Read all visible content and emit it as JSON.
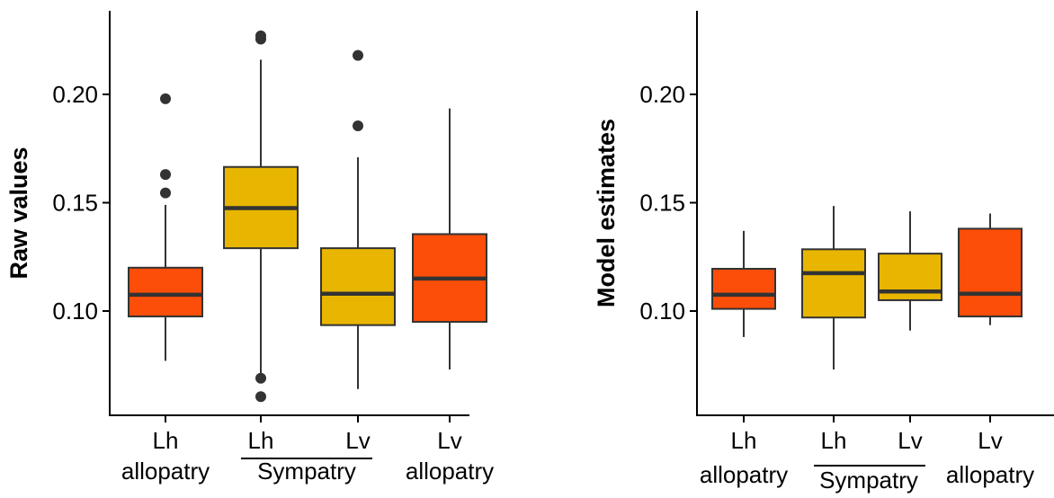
{
  "chart_data": [
    {
      "type": "box",
      "ylabel": "Raw values",
      "ylim": [
        0.05,
        0.24
      ],
      "yticks": [
        "0.10",
        "0.15",
        "0.20"
      ],
      "ytick_values": [
        0.1,
        0.15,
        0.2
      ],
      "categories": [
        {
          "line1": "Lh",
          "line2": "allopatry"
        },
        {
          "line1": "Lh",
          "line2": ""
        },
        {
          "line1": "Lv",
          "line2": ""
        },
        {
          "line1": "Lv",
          "line2": "allopatry"
        }
      ],
      "group_label": {
        "text": "Sympatry",
        "spans": [
          1,
          2
        ]
      },
      "colors": [
        "#fc4e08",
        "#e8b600",
        "#e8b600",
        "#fc4e08"
      ],
      "boxes": [
        {
          "min": 0.077,
          "q1": 0.0975,
          "median": 0.1075,
          "q3": 0.12,
          "max": 0.149,
          "outliers": [
            0.198,
            0.163,
            0.1545
          ]
        },
        {
          "min": 0.071,
          "q1": 0.129,
          "median": 0.1475,
          "q3": 0.1665,
          "max": 0.216,
          "outliers": [
            0.227,
            0.2255,
            0.069,
            0.0605
          ]
        },
        {
          "min": 0.064,
          "q1": 0.0935,
          "median": 0.108,
          "q3": 0.129,
          "max": 0.171,
          "outliers": [
            0.218,
            0.1855
          ]
        },
        {
          "min": 0.073,
          "q1": 0.095,
          "median": 0.115,
          "q3": 0.1355,
          "max": 0.1935,
          "outliers": []
        }
      ]
    },
    {
      "type": "box",
      "ylabel": "Model estimates",
      "ylim": [
        0.05,
        0.24
      ],
      "yticks": [
        "0.10",
        "0.15",
        "0.20"
      ],
      "ytick_values": [
        0.1,
        0.15,
        0.2
      ],
      "categories": [
        {
          "line1": "Lh",
          "line2": "allopatry"
        },
        {
          "line1": "Lh",
          "line2": ""
        },
        {
          "line1": "Lv",
          "line2": ""
        },
        {
          "line1": "Lv",
          "line2": "allopatry"
        }
      ],
      "group_label": {
        "text": "Sympatry",
        "spans": [
          1,
          2
        ]
      },
      "colors": [
        "#fc4e08",
        "#e8b600",
        "#e8b600",
        "#fc4e08"
      ],
      "boxes": [
        {
          "min": 0.088,
          "q1": 0.101,
          "median": 0.1075,
          "q3": 0.1195,
          "max": 0.137,
          "outliers": []
        },
        {
          "min": 0.073,
          "q1": 0.097,
          "median": 0.1175,
          "q3": 0.1285,
          "max": 0.1485,
          "outliers": []
        },
        {
          "min": 0.091,
          "q1": 0.105,
          "median": 0.109,
          "q3": 0.1265,
          "max": 0.146,
          "outliers": []
        },
        {
          "min": 0.0935,
          "q1": 0.0975,
          "median": 0.108,
          "q3": 0.138,
          "max": 0.145,
          "outliers": []
        }
      ]
    }
  ]
}
